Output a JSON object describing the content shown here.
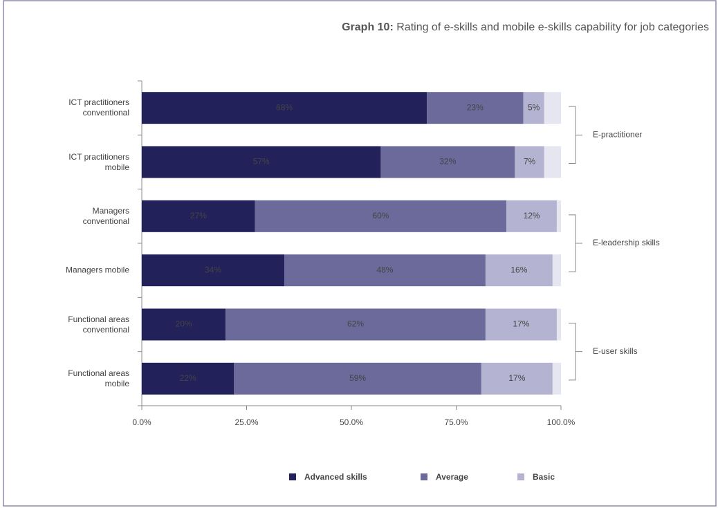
{
  "chart_data": {
    "type": "stacked-barh",
    "title_prefix": "Graph 10:",
    "title": "Rating of e-skills and mobile e-skills capability for job categories",
    "categories": [
      "ICT practitioners\nconventional",
      "ICT practitioners\nmobile",
      "Managers\nconventional",
      "Managers mobile",
      "Functional areas\nconventional",
      "Functional areas\nmobile"
    ],
    "groups": [
      "E-practitioner",
      "E-leadership skills",
      "E-user skills"
    ],
    "series": [
      {
        "name": "Advanced skills",
        "color": "#22215a",
        "values": [
          68,
          57,
          27,
          34,
          20,
          22
        ],
        "value_labels": [
          "68%",
          "57%",
          "27%",
          "34%",
          "20%",
          "22%"
        ]
      },
      {
        "name": "Average",
        "color": "#6b6a9b",
        "values": [
          23,
          32,
          60,
          48,
          62,
          59
        ],
        "value_labels": [
          "23%",
          "32%",
          "60%",
          "48%",
          "62%",
          "59%"
        ]
      },
      {
        "name": "Basic",
        "color": "#b4b3d1",
        "values": [
          5,
          7,
          12,
          16,
          17,
          17
        ],
        "value_labels": [
          "5%",
          "7%",
          "12%",
          "16%",
          "17%",
          "17%"
        ]
      },
      {
        "color": "#e6e6f0",
        "values": [
          4,
          4,
          1,
          2,
          1,
          2
        ]
      }
    ],
    "xlim": [
      0,
      100
    ],
    "xticks": [
      {
        "value": 0,
        "label": "0.0%"
      },
      {
        "value": 25,
        "label": "25.0%"
      },
      {
        "value": 50,
        "label": "50.0%"
      },
      {
        "value": 75,
        "label": "75.0%"
      },
      {
        "value": 100,
        "label": "100.0%"
      }
    ],
    "legend": "bottom"
  }
}
